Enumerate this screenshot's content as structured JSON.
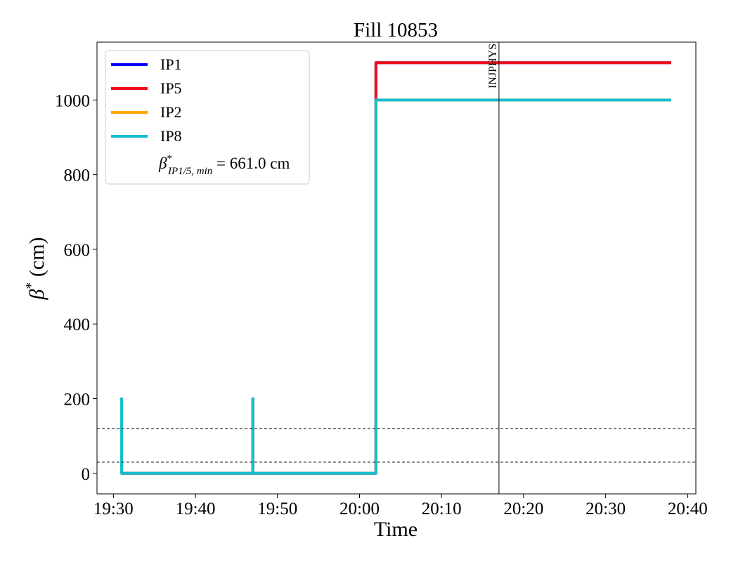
{
  "chart_data": {
    "type": "line",
    "title": "Fill 10853",
    "xlabel": "Time",
    "ylabel": {
      "symbol": "β",
      "sup": "*",
      "text": " (cm)"
    },
    "x": [
      "19:31",
      "19:31",
      "19:31",
      "19:47",
      "19:47",
      "19:47",
      "20:02",
      "20:02",
      "20:38"
    ],
    "series": [
      {
        "name": "IP1",
        "color": "#0000ff",
        "values": [
          0,
          0,
          0,
          0,
          200,
          0,
          0,
          1100,
          1100
        ]
      },
      {
        "name": "IP5",
        "color": "#f0101c",
        "values": [
          0,
          0,
          0,
          0,
          200,
          0,
          0,
          1100,
          1100
        ]
      },
      {
        "name": "IP2",
        "color": "#ffa500",
        "values": [
          0,
          200,
          0,
          0,
          200,
          0,
          0,
          1000,
          1000
        ]
      },
      {
        "name": "IP8",
        "color": "#17becf",
        "values": [
          0,
          200,
          0,
          0,
          200,
          0,
          0,
          1000,
          1000
        ]
      }
    ],
    "legend_note": {
      "symbol": "β",
      "sup": "*",
      "sub": "IP1/5, min",
      "text": " = 661.0 cm"
    },
    "legend": "upper left",
    "hlines": [
      120,
      30
    ],
    "vlines": [
      {
        "x": "20:17",
        "label": "INJPHYS"
      }
    ],
    "xlim": [
      "19:28",
      "20:41"
    ],
    "xticks": [
      "19:30",
      "19:40",
      "19:50",
      "20:00",
      "20:10",
      "20:20",
      "20:30",
      "20:40"
    ],
    "ylim": [
      -55,
      1155
    ],
    "yticks": [
      0,
      200,
      400,
      600,
      800,
      1000
    ]
  }
}
